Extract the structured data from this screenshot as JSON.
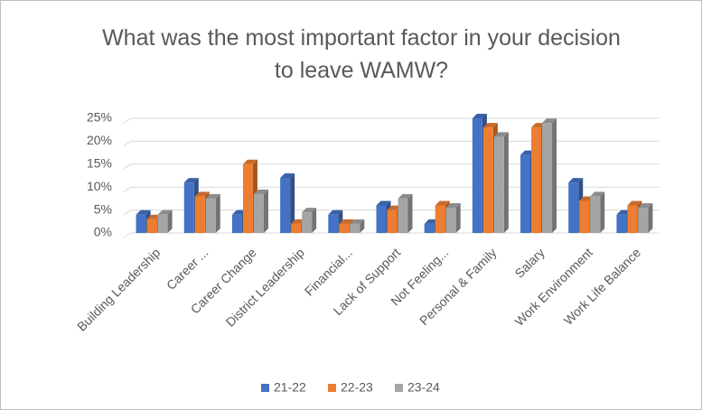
{
  "chart_data": {
    "type": "bar",
    "title": "What was the most important factor in your decision to leave WAMW?",
    "categories": [
      "Building Leadership",
      "Career ...",
      "Career Change",
      "District Leadership",
      "Financial...",
      "Lack of Support",
      "Not Feeling...",
      "Personal & Family",
      "Salary",
      "Work Environment",
      "Work Life Balance"
    ],
    "series": [
      {
        "name": "21-22",
        "color": "#4472c4",
        "values": [
          4,
          11,
          4,
          12,
          4,
          6,
          2,
          25,
          17,
          11,
          4
        ]
      },
      {
        "name": "22-23",
        "color": "#ed7d31",
        "values": [
          3,
          8,
          15,
          2,
          2,
          5,
          6,
          23,
          23,
          7,
          6
        ]
      },
      {
        "name": "23-24",
        "color": "#a5a5a5",
        "values": [
          4,
          7.5,
          8.5,
          4.5,
          2,
          7.5,
          5.5,
          21,
          24,
          8,
          5.5
        ]
      }
    ],
    "ylim": [
      0,
      25
    ],
    "yticks": [
      {
        "value": 0,
        "label": "0%"
      },
      {
        "value": 5,
        "label": "5%"
      },
      {
        "value": 10,
        "label": "10%"
      },
      {
        "value": 15,
        "label": "15%"
      },
      {
        "value": 20,
        "label": "20%"
      },
      {
        "value": 25,
        "label": "25%"
      }
    ],
    "grid": true,
    "legend": "bottom"
  }
}
